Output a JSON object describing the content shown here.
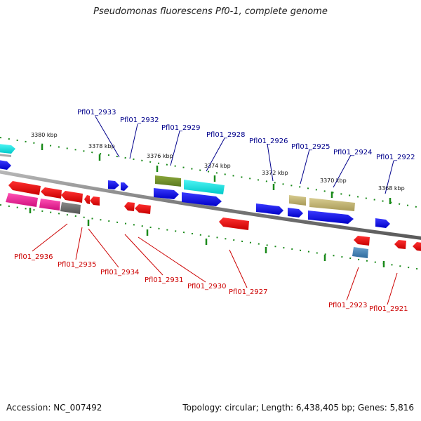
{
  "title": "Pseudomonas fluorescens Pf0-1, complete genome",
  "accession": "Accession: NC_007492",
  "summary": "Topology: circular; Length: 6,438,405 bp; Genes: 5,816",
  "colors": {
    "backbone": "#8c8c8c",
    "tick": "#1a8a1a",
    "label_top": "#00008b",
    "label_bottom": "#cc0000",
    "scale_text": "#111111"
  },
  "scale_labels": [
    "3380 kbp",
    "3378 kbp",
    "3376 kbp",
    "3374 kbp",
    "3372 kbp",
    "3370 kbp",
    "3368 kbp"
  ],
  "genes_top": [
    "Pfl01_2933",
    "Pfl01_2932",
    "Pfl01_2929",
    "Pfl01_2928",
    "Pfl01_2926",
    "Pfl01_2925",
    "Pfl01_2924",
    "Pfl01_2922"
  ],
  "genes_bottom": [
    "Pfl01_2936",
    "Pfl01_2935",
    "Pfl01_2934",
    "Pfl01_2931",
    "Pfl01_2930",
    "Pfl01_2927",
    "Pfl01_2923",
    "Pfl01_2921"
  ]
}
